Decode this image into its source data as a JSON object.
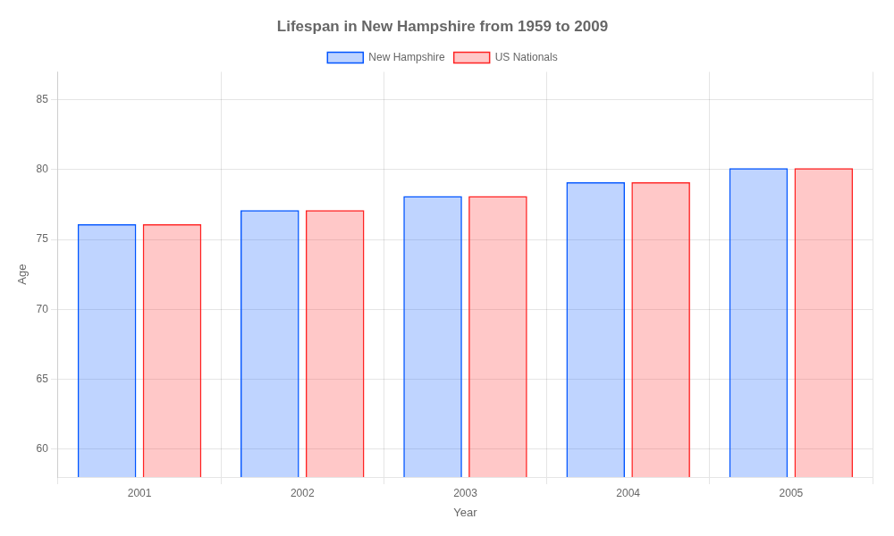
{
  "chart_data": {
    "type": "bar",
    "title": "Lifespan in New Hampshire from 1959 to 2009",
    "xlabel": "Year",
    "ylabel": "Age",
    "categories": [
      "2001",
      "2002",
      "2003",
      "2004",
      "2005"
    ],
    "series": [
      {
        "name": "New Hampshire",
        "color": "#0055ff",
        "values": [
          76.1,
          77.1,
          78.1,
          79.1,
          80.1
        ]
      },
      {
        "name": "US Nationals",
        "color": "#ff2222",
        "values": [
          76.1,
          77.1,
          78.1,
          79.1,
          80.1
        ]
      }
    ],
    "ylim": [
      58,
      87
    ],
    "yticks": [
      60,
      65,
      70,
      75,
      80,
      85
    ],
    "grid": true,
    "legend": "top"
  }
}
